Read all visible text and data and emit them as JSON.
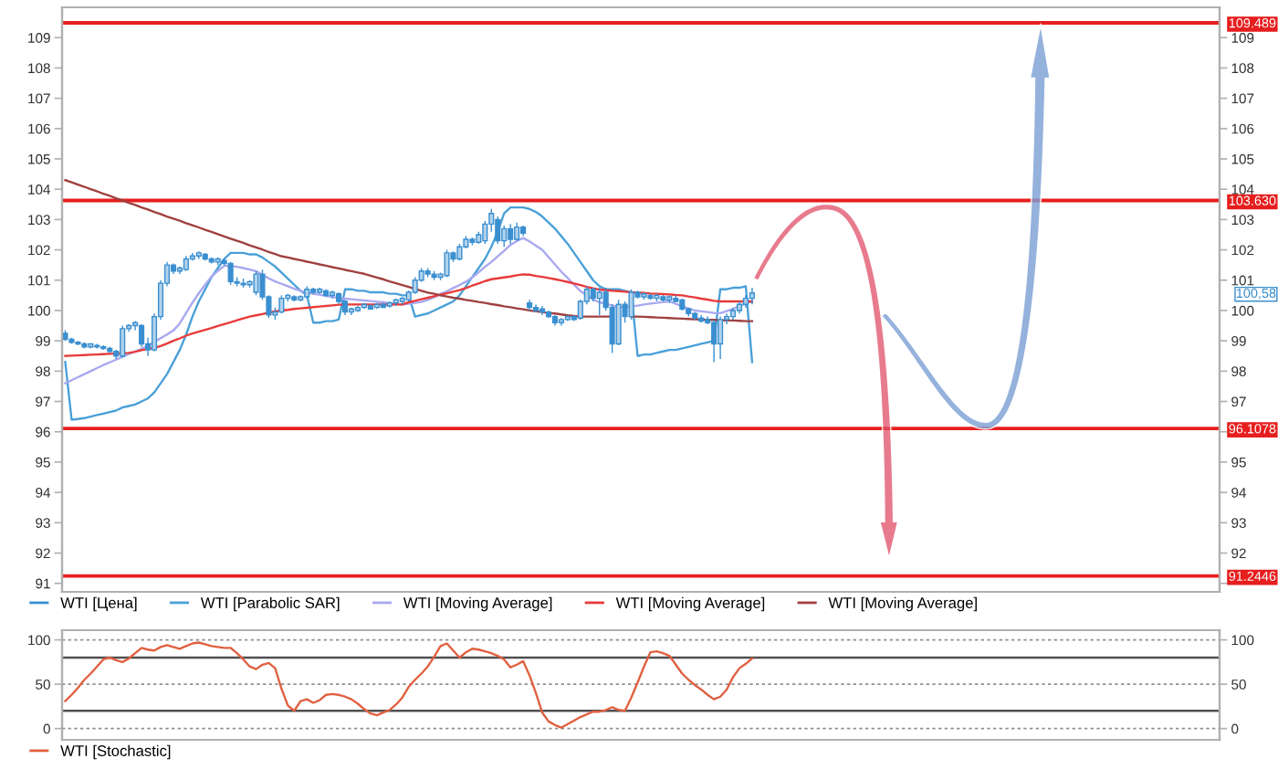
{
  "chart_data": [
    {
      "type": "candlestick",
      "categories": [
        null,
        null,
        null,
        null,
        null,
        null,
        null,
        null,
        null,
        null,
        null,
        null,
        null,
        null,
        null,
        null,
        null,
        null,
        null,
        null,
        null,
        null,
        null,
        null,
        null,
        null,
        null,
        null,
        null,
        null,
        null,
        null,
        null,
        null,
        null,
        null,
        null,
        null,
        null,
        null,
        null,
        null,
        null,
        null,
        null,
        null,
        null,
        null,
        null,
        null,
        null,
        null,
        null,
        null,
        null,
        null,
        null,
        null,
        null,
        null,
        null,
        null,
        null,
        null,
        null,
        null,
        null,
        null,
        null,
        null,
        null,
        null,
        null,
        null,
        null,
        null,
        null,
        null,
        null,
        null,
        null,
        null,
        null,
        null,
        null,
        null,
        null,
        null,
        null,
        null,
        null,
        null,
        null,
        null,
        null,
        null,
        null,
        null,
        null,
        null,
        null,
        null,
        null,
        null,
        null,
        null,
        null,
        null,
        null,
        null,
        null,
        null,
        null,
        null,
        null,
        null,
        null,
        null,
        null,
        null,
        null,
        null,
        null,
        null,
        null,
        null,
        null,
        null,
        null,
        null,
        null,
        null,
        null,
        null,
        null,
        null,
        null,
        null,
        null,
        null,
        null,
        null,
        null,
        null,
        null,
        null,
        null,
        null,
        null,
        null,
        null,
        null,
        null,
        null,
        null,
        null,
        null,
        null,
        null,
        null,
        null,
        null,
        null,
        null,
        null,
        null,
        null,
        null,
        null,
        null,
        null,
        null,
        null,
        null,
        null,
        null,
        null,
        null,
        null,
        null,
        null,
        null
      ],
      "series": [
        {
          "name": "WTI [Цена]",
          "type": "candlestick",
          "color": "#3a8fd0",
          "ohlc": [
            [
              99.25,
              99.35,
              99.0,
              99.05
            ],
            [
              99.05,
              99.1,
              98.9,
              98.95
            ],
            [
              98.95,
              99.0,
              98.85,
              98.9
            ],
            [
              98.9,
              98.95,
              98.75,
              98.8
            ],
            [
              98.8,
              98.9,
              98.75,
              98.9
            ],
            [
              98.85,
              98.9,
              98.75,
              98.8
            ],
            [
              98.8,
              98.85,
              98.7,
              98.75
            ],
            [
              98.75,
              98.8,
              98.6,
              98.65
            ],
            [
              98.65,
              98.7,
              98.4,
              98.5
            ],
            [
              98.5,
              99.5,
              98.45,
              99.4
            ],
            [
              99.4,
              99.55,
              99.3,
              99.5
            ],
            [
              99.5,
              99.65,
              99.35,
              99.6
            ],
            [
              99.5,
              99.55,
              98.8,
              98.9
            ],
            [
              98.9,
              99.1,
              98.5,
              98.7
            ],
            [
              98.7,
              99.9,
              98.65,
              99.8
            ],
            [
              99.8,
              101.0,
              99.7,
              100.9
            ],
            [
              100.9,
              101.6,
              100.8,
              101.5
            ],
            [
              101.5,
              101.55,
              101.2,
              101.3
            ],
            [
              101.3,
              101.45,
              101.2,
              101.4
            ],
            [
              101.35,
              101.8,
              101.3,
              101.7
            ],
            [
              101.7,
              101.9,
              101.65,
              101.8
            ],
            [
              101.8,
              101.95,
              101.7,
              101.9
            ],
            [
              101.85,
              101.9,
              101.65,
              101.7
            ],
            [
              101.7,
              101.75,
              101.55,
              101.6
            ],
            [
              101.6,
              101.75,
              101.5,
              101.7
            ],
            [
              101.65,
              101.7,
              101.5,
              101.55
            ],
            [
              101.55,
              101.6,
              100.85,
              100.95
            ],
            [
              100.95,
              101.1,
              100.8,
              100.9
            ],
            [
              100.9,
              101.05,
              100.75,
              100.85
            ],
            [
              100.85,
              101.0,
              100.75,
              100.95
            ],
            [
              100.6,
              101.3,
              100.5,
              101.2
            ],
            [
              101.2,
              101.35,
              100.35,
              100.45
            ],
            [
              100.45,
              100.5,
              99.75,
              99.85
            ],
            [
              99.85,
              100.1,
              99.7,
              99.95
            ],
            [
              99.95,
              100.5,
              99.9,
              100.4
            ],
            [
              100.4,
              100.55,
              100.3,
              100.5
            ],
            [
              100.45,
              100.5,
              100.3,
              100.35
            ],
            [
              100.35,
              100.5,
              100.3,
              100.45
            ],
            [
              100.45,
              100.8,
              100.4,
              100.7
            ],
            [
              100.7,
              100.75,
              100.55,
              100.6
            ],
            [
              100.6,
              100.75,
              100.55,
              100.7
            ],
            [
              100.65,
              100.7,
              100.45,
              100.5
            ],
            [
              100.5,
              100.65,
              100.4,
              100.6
            ],
            [
              100.55,
              100.6,
              100.2,
              100.3
            ],
            [
              100.3,
              100.35,
              99.85,
              99.95
            ],
            [
              99.95,
              100.1,
              99.85,
              100.05
            ],
            [
              100.0,
              100.15,
              99.95,
              100.1
            ],
            [
              100.1,
              100.25,
              100.05,
              100.2
            ],
            [
              100.15,
              100.2,
              100.05,
              100.05
            ],
            [
              100.1,
              100.25,
              100.05,
              100.2
            ],
            [
              100.2,
              100.25,
              100.1,
              100.1
            ],
            [
              100.15,
              100.3,
              100.1,
              100.25
            ],
            [
              100.25,
              100.4,
              100.15,
              100.35
            ],
            [
              100.3,
              100.45,
              100.2,
              100.4
            ],
            [
              100.35,
              100.65,
              100.3,
              100.6
            ],
            [
              100.6,
              101.1,
              100.55,
              101.0
            ],
            [
              101.0,
              101.4,
              100.95,
              101.3
            ],
            [
              101.3,
              101.4,
              101.1,
              101.2
            ],
            [
              101.2,
              101.3,
              101.0,
              101.1
            ],
            [
              101.1,
              101.25,
              101.0,
              101.2
            ],
            [
              101.15,
              102.0,
              101.1,
              101.9
            ],
            [
              101.9,
              101.95,
              101.6,
              101.7
            ],
            [
              101.7,
              102.2,
              101.65,
              102.1
            ],
            [
              102.1,
              102.45,
              102.05,
              102.35
            ],
            [
              102.35,
              102.4,
              102.15,
              102.25
            ],
            [
              102.25,
              102.6,
              102.2,
              102.5
            ],
            [
              102.3,
              102.95,
              102.2,
              102.85
            ],
            [
              102.85,
              103.35,
              102.6,
              103.2
            ],
            [
              103.0,
              103.1,
              102.2,
              102.3
            ],
            [
              102.3,
              102.8,
              102.1,
              102.7
            ],
            [
              102.7,
              102.85,
              102.2,
              102.35
            ],
            [
              102.35,
              102.9,
              102.3,
              102.75
            ],
            [
              102.75,
              102.8,
              102.45,
              102.55
            ],
            [
              100.25,
              100.35,
              100.0,
              100.1
            ],
            [
              100.1,
              100.2,
              99.95,
              100.0
            ],
            [
              100.05,
              100.15,
              99.85,
              99.95
            ],
            [
              99.95,
              100.0,
              99.75,
              99.8
            ],
            [
              99.8,
              99.85,
              99.5,
              99.6
            ],
            [
              99.6,
              99.75,
              99.5,
              99.7
            ],
            [
              99.7,
              99.85,
              99.65,
              99.8
            ],
            [
              99.8,
              99.85,
              99.65,
              99.7
            ],
            [
              99.75,
              100.35,
              99.7,
              100.3
            ],
            [
              100.3,
              100.8,
              100.2,
              100.7
            ],
            [
              100.7,
              100.75,
              100.3,
              100.4
            ],
            [
              100.4,
              100.75,
              99.85,
              100.6
            ],
            [
              100.6,
              100.75,
              100.0,
              100.1
            ],
            [
              100.1,
              100.2,
              98.6,
              98.9
            ],
            [
              98.9,
              100.35,
              98.85,
              100.2
            ],
            [
              100.2,
              100.3,
              99.6,
              99.8
            ],
            [
              99.8,
              100.7,
              99.7,
              100.6
            ],
            [
              100.6,
              100.65,
              100.4,
              100.45
            ],
            [
              100.45,
              100.6,
              100.35,
              100.55
            ],
            [
              100.5,
              100.55,
              100.35,
              100.4
            ],
            [
              100.4,
              100.55,
              100.3,
              100.5
            ],
            [
              100.45,
              100.5,
              100.3,
              100.35
            ],
            [
              100.35,
              100.5,
              100.25,
              100.45
            ],
            [
              100.4,
              100.5,
              100.3,
              100.3
            ],
            [
              100.35,
              100.4,
              100.0,
              100.05
            ],
            [
              100.05,
              100.1,
              99.8,
              99.9
            ],
            [
              99.9,
              99.95,
              99.7,
              99.75
            ],
            [
              99.75,
              99.85,
              99.6,
              99.65
            ],
            [
              99.7,
              99.8,
              99.55,
              99.6
            ],
            [
              99.6,
              99.7,
              98.3,
              98.9
            ],
            [
              98.9,
              99.8,
              98.4,
              99.7
            ],
            [
              99.7,
              99.9,
              99.55,
              99.8
            ],
            [
              99.8,
              100.1,
              99.7,
              100.0
            ],
            [
              100.0,
              100.3,
              99.9,
              100.2
            ],
            [
              100.2,
              100.5,
              100.1,
              100.4
            ],
            [
              100.4,
              100.75,
              100.2,
              100.58
            ],
            null,
            null,
            null,
            null,
            null,
            null,
            null,
            null,
            null,
            null,
            null,
            null,
            null,
            null,
            null,
            null,
            null,
            null,
            null,
            null,
            null,
            null,
            null,
            null,
            null,
            null,
            null,
            null,
            null,
            null,
            null,
            null,
            null,
            null,
            null,
            null,
            null,
            null,
            null,
            null,
            null,
            null,
            null,
            null,
            null,
            null,
            null,
            null,
            null,
            null,
            null,
            null,
            null,
            null,
            null,
            null,
            null,
            null,
            null,
            null,
            null,
            null,
            null,
            null,
            null,
            null,
            null,
            null,
            null,
            null,
            null,
            null,
            null
          ]
        },
        {
          "name": "WTI [Parabolic SAR]",
          "type": "line",
          "color": "#4aa0d8",
          "values": [
            98.3,
            96.4,
            96.42,
            96.45,
            96.5,
            96.55,
            96.6,
            96.65,
            96.7,
            96.8,
            96.85,
            96.9,
            97.0,
            97.1,
            97.3,
            97.6,
            97.9,
            98.3,
            98.7,
            99.2,
            99.8,
            100.3,
            100.7,
            101.1,
            101.4,
            101.7,
            101.9,
            101.9,
            101.9,
            101.85,
            101.85,
            101.75,
            101.6,
            101.45,
            101.25,
            101.05,
            100.85,
            100.65,
            100.5,
            99.6,
            99.6,
            99.65,
            99.65,
            99.7,
            100.7,
            100.7,
            100.65,
            100.65,
            100.6,
            100.6,
            100.6,
            100.55,
            100.55,
            100.5,
            100.5,
            99.8,
            99.85,
            99.9,
            100.0,
            100.1,
            100.2,
            100.3,
            100.5,
            100.8,
            101.1,
            101.4,
            101.7,
            102.1,
            102.6,
            103.2,
            103.4,
            103.4,
            103.4,
            103.35,
            103.25,
            103.1,
            102.9,
            102.7,
            102.45,
            102.2,
            101.9,
            101.6,
            101.3,
            101.0,
            100.8,
            100.7,
            100.7,
            100.7,
            100.65,
            100.6,
            98.5,
            98.55,
            98.55,
            98.6,
            98.65,
            98.7,
            98.7,
            98.75,
            98.8,
            98.85,
            98.9,
            98.95,
            99.0,
            100.7,
            100.7,
            100.75,
            100.75,
            100.8,
            98.3,
            null,
            null,
            null,
            null,
            null,
            null,
            null,
            null,
            null,
            null,
            null,
            null,
            null,
            null,
            null,
            null,
            null,
            null,
            null,
            null,
            null,
            null,
            null,
            null,
            null,
            null,
            null,
            null,
            null,
            null,
            null,
            null,
            null,
            null,
            null,
            null,
            null,
            null,
            null,
            null,
            null,
            null,
            null,
            null,
            null,
            null,
            null,
            null,
            null,
            null,
            null,
            null,
            null,
            null,
            null,
            null,
            null,
            null,
            null,
            null,
            null,
            null,
            null,
            null,
            null,
            null,
            null,
            null,
            null,
            null,
            null,
            null,
            null
          ]
        },
        {
          "name": "WTI [Moving Average]",
          "type": "line",
          "color": "#a8a8f0",
          "values": [
            97.6,
            97.7,
            97.8,
            97.9,
            98.0,
            98.1,
            98.2,
            98.29,
            98.38,
            98.47,
            98.56,
            98.65,
            98.74,
            98.84,
            98.96,
            99.09,
            99.21,
            99.34,
            99.57,
            99.92,
            100.26,
            100.57,
            100.85,
            101.12,
            101.31,
            101.47,
            101.47,
            101.44,
            101.4,
            101.35,
            101.3,
            101.17,
            101.06,
            100.96,
            100.88,
            100.8,
            100.72,
            100.65,
            100.59,
            100.55,
            100.52,
            100.48,
            100.45,
            100.41,
            100.39,
            100.37,
            100.35,
            100.33,
            100.31,
            100.29,
            100.27,
            100.24,
            100.22,
            100.2,
            100.22,
            100.25,
            100.28,
            100.35,
            100.44,
            100.55,
            100.63,
            100.74,
            100.84,
            100.95,
            101.09,
            101.26,
            101.44,
            101.6,
            101.79,
            101.97,
            102.16,
            102.29,
            102.39,
            102.28,
            102.14,
            102.0,
            101.76,
            101.52,
            101.28,
            101.07,
            100.85,
            100.64,
            100.5,
            100.36,
            100.27,
            100.22,
            100.17,
            100.11,
            100.11,
            100.14,
            100.16,
            100.2,
            100.23,
            100.25,
            100.28,
            100.3,
            100.22,
            100.14,
            100.06,
            100.0,
            99.97,
            99.95,
            99.92,
            99.91,
            99.98,
            100.05,
            100.15,
            100.23,
            100.3,
            null,
            null,
            null,
            null,
            null,
            null,
            null,
            null,
            null,
            null,
            null,
            null,
            null,
            null,
            null,
            null,
            null,
            null,
            null,
            null,
            null,
            null,
            null,
            null,
            null,
            null,
            null,
            null,
            null,
            null,
            null,
            null,
            null,
            null,
            null,
            null,
            null,
            null,
            null,
            null,
            null,
            null,
            null,
            null,
            null,
            null,
            null,
            null,
            null,
            null,
            null,
            null,
            null,
            null,
            null,
            null,
            null,
            null,
            null,
            null,
            null,
            null,
            null,
            null,
            null,
            null,
            null,
            null,
            null,
            null,
            null,
            null,
            null
          ]
        },
        {
          "name": "WTI [Moving Average]",
          "type": "line",
          "color": "#e83a3a",
          "values": [
            98.5,
            98.51,
            98.52,
            98.53,
            98.54,
            98.55,
            98.56,
            98.57,
            98.58,
            98.59,
            98.6,
            98.64,
            98.69,
            98.73,
            98.77,
            98.83,
            98.91,
            99.0,
            99.08,
            99.17,
            99.24,
            99.3,
            99.36,
            99.42,
            99.49,
            99.55,
            99.61,
            99.68,
            99.74,
            99.8,
            99.84,
            99.88,
            99.93,
            99.97,
            100.0,
            100.02,
            100.05,
            100.07,
            100.09,
            100.11,
            100.13,
            100.15,
            100.17,
            100.19,
            100.2,
            100.2,
            100.2,
            100.2,
            100.2,
            100.2,
            100.2,
            100.2,
            100.2,
            100.2,
            100.27,
            100.32,
            100.37,
            100.42,
            100.47,
            100.52,
            100.57,
            100.62,
            100.67,
            100.74,
            100.82,
            100.89,
            100.97,
            101.03,
            101.06,
            101.09,
            101.12,
            101.16,
            101.19,
            101.18,
            101.14,
            101.11,
            101.07,
            101.03,
            100.99,
            100.94,
            100.89,
            100.84,
            100.78,
            100.73,
            100.69,
            100.67,
            100.65,
            100.64,
            100.62,
            100.6,
            100.59,
            100.58,
            100.56,
            100.55,
            100.54,
            100.53,
            100.51,
            100.5,
            100.46,
            100.43,
            100.39,
            100.36,
            100.32,
            100.3,
            100.3,
            100.3,
            100.3,
            100.3,
            100.3,
            null,
            null,
            null,
            null,
            null,
            null,
            null,
            null,
            null,
            null,
            null,
            null,
            null,
            null,
            null,
            null,
            null,
            null,
            null,
            null,
            null,
            null,
            null,
            null,
            null,
            null,
            null,
            null,
            null,
            null,
            null,
            null,
            null,
            null,
            null,
            null,
            null,
            null,
            null,
            null,
            null,
            null,
            null,
            null,
            null,
            null,
            null,
            null,
            null,
            null,
            null,
            null,
            null,
            null,
            null,
            null,
            null,
            null,
            null,
            null,
            null,
            null,
            null,
            null,
            null,
            null,
            null,
            null,
            null,
            null,
            null,
            null,
            null
          ]
        },
        {
          "name": "WTI [Moving Average]",
          "type": "line",
          "color": "#a04040",
          "values": [
            104.3,
            104.23,
            104.15,
            104.08,
            104.0,
            103.93,
            103.85,
            103.78,
            103.7,
            103.63,
            103.55,
            103.48,
            103.4,
            103.33,
            103.25,
            103.18,
            103.1,
            103.03,
            102.96,
            102.88,
            102.81,
            102.74,
            102.66,
            102.59,
            102.52,
            102.44,
            102.37,
            102.3,
            102.23,
            102.15,
            102.08,
            102.01,
            101.93,
            101.86,
            101.79,
            101.75,
            101.7,
            101.66,
            101.61,
            101.57,
            101.52,
            101.48,
            101.43,
            101.39,
            101.34,
            101.3,
            101.25,
            101.21,
            101.15,
            101.09,
            101.03,
            100.96,
            100.9,
            100.84,
            100.78,
            100.71,
            100.65,
            100.59,
            100.55,
            100.5,
            100.46,
            100.42,
            100.39,
            100.35,
            100.32,
            100.28,
            100.25,
            100.21,
            100.18,
            100.14,
            100.11,
            100.07,
            100.04,
            100.0,
            99.97,
            99.95,
            99.92,
            99.9,
            99.87,
            99.84,
            99.82,
            99.8,
            99.8,
            99.8,
            99.8,
            99.8,
            99.8,
            null,
            null,
            99.8,
            99.8,
            99.79,
            99.78,
            99.77,
            99.76,
            99.75,
            99.74,
            99.73,
            99.72,
            99.71,
            99.7,
            99.69,
            99.69,
            99.68,
            99.67,
            99.67,
            99.66,
            99.65,
            99.65,
            null,
            null,
            null,
            null,
            null,
            null,
            null,
            null,
            null,
            null,
            null,
            null,
            null,
            null,
            null,
            null,
            null,
            null,
            null,
            null,
            null,
            null,
            null,
            null,
            null,
            null,
            null,
            null,
            null,
            null,
            null,
            null,
            null,
            null,
            null,
            null,
            null,
            null,
            null,
            null,
            null,
            null,
            null,
            null,
            null,
            null,
            null,
            null,
            null,
            null,
            null,
            null,
            null,
            null,
            null,
            null,
            null,
            null,
            null,
            null,
            null,
            null,
            null,
            null,
            null,
            null,
            null,
            null,
            null,
            null,
            null,
            null,
            null
          ]
        }
      ],
      "ylim": [
        90.72,
        110.0
      ],
      "yticks": [
        91,
        92,
        93,
        94,
        95,
        96,
        97,
        98,
        99,
        100,
        101,
        102,
        103,
        104,
        105,
        106,
        107,
        108,
        109
      ],
      "y2lim": [
        90.72,
        110.0
      ],
      "y2ticks": [
        {
          "value": 91,
          "label": null
        },
        92,
        93,
        94,
        95,
        {
          "value": 96,
          "label": null
        },
        97,
        98,
        99,
        100,
        101,
        102,
        103,
        104,
        105,
        106,
        107,
        108,
        109
      ],
      "ref_lines": [
        {
          "axis": "y",
          "value": 109.489,
          "label": "109.489",
          "color": "#e61e1e"
        },
        {
          "axis": "y",
          "value": 103.63,
          "label": "103.630",
          "color": "#e61e1e"
        },
        {
          "axis": "y",
          "value": 96.1078,
          "label": "96.1078",
          "color": "#e61e1e"
        },
        {
          "axis": "y",
          "value": 91.2446,
          "label": "91.2446",
          "color": "#e61e1e"
        }
      ],
      "annotations": [
        "100,58"
      ],
      "legend": "bottom left",
      "tick_labels": "y"
    },
    {
      "type": "line",
      "categories": [
        null,
        null,
        null,
        null,
        null,
        null,
        null,
        null,
        null,
        null,
        null,
        null,
        null,
        null,
        null,
        null,
        null,
        null,
        null,
        null,
        null,
        null,
        null,
        null,
        null,
        null,
        null,
        null,
        null,
        null,
        null,
        null,
        null,
        null,
        null,
        null,
        null,
        null,
        null,
        null,
        null,
        null,
        null,
        null,
        null,
        null,
        null,
        null,
        null,
        null,
        null,
        null,
        null,
        null,
        null,
        null,
        null,
        null,
        null,
        null,
        null,
        null,
        null,
        null,
        null,
        null,
        null,
        null,
        null,
        null,
        null,
        null,
        null,
        null,
        null,
        null,
        null,
        null,
        null,
        null,
        null,
        null,
        null,
        null,
        null,
        null,
        null,
        null,
        null,
        null,
        null,
        null,
        null,
        null,
        null,
        null,
        null,
        null,
        null,
        null,
        null,
        null,
        null,
        null,
        null,
        null,
        null,
        null,
        null,
        null,
        null,
        null,
        null,
        null,
        null,
        null,
        null,
        null,
        null,
        null,
        null,
        null,
        null,
        null,
        null,
        null,
        null,
        null,
        null,
        null,
        null,
        null,
        null,
        null,
        null,
        null,
        null,
        null,
        null,
        null,
        null,
        null,
        null,
        null,
        null,
        null,
        null,
        null,
        null,
        null,
        null,
        null,
        null,
        null,
        null,
        null,
        null,
        null,
        null,
        null,
        null,
        null,
        null,
        null,
        null,
        null,
        null,
        null,
        null,
        null,
        null,
        null,
        null,
        null,
        null,
        null,
        null,
        null,
        null,
        null,
        null,
        null
      ],
      "series": [
        {
          "name": "WTI [Stochastic]",
          "color": "#e06040",
          "values": [
            31,
            38,
            46,
            55,
            62,
            70,
            78,
            80,
            77,
            75,
            79,
            85,
            91,
            89,
            88,
            92,
            94,
            92,
            90,
            93,
            96,
            97,
            95,
            93,
            92,
            91,
            91,
            85,
            78,
            70,
            67,
            72,
            74,
            68,
            45,
            26,
            20,
            31,
            33,
            29,
            32,
            38,
            39,
            38,
            36,
            33,
            28,
            22,
            17,
            15,
            18,
            21,
            27,
            35,
            47,
            55,
            62,
            70,
            81,
            93,
            96,
            88,
            80,
            86,
            90,
            89,
            87,
            85,
            82,
            78,
            69,
            72,
            76,
            60,
            40,
            18,
            8,
            4,
            1,
            5,
            9,
            13,
            16,
            19,
            19,
            21,
            24,
            21,
            20,
            35,
            52,
            70,
            86,
            87,
            85,
            82,
            72,
            62,
            55,
            49,
            44,
            38,
            33,
            36,
            44,
            58,
            68,
            73,
            79,
            null,
            null,
            null,
            null,
            null,
            null,
            null,
            null,
            null,
            null,
            null,
            null,
            null,
            null,
            null,
            null,
            null,
            null,
            null,
            null,
            null,
            null,
            null,
            null,
            null,
            null,
            null,
            null,
            null,
            null,
            null,
            null,
            null,
            null,
            null,
            null,
            null,
            null,
            null,
            null,
            null,
            null,
            null,
            null,
            null,
            null,
            null,
            null,
            null,
            null,
            null,
            null,
            null,
            null,
            null,
            null,
            null,
            null,
            null,
            null,
            null,
            null,
            null,
            null,
            null,
            null,
            null,
            null,
            null,
            null,
            null,
            null,
            null
          ]
        }
      ],
      "ylim": [
        -12.7,
        110.9
      ],
      "yticks": [
        0,
        50,
        100
      ],
      "y2lim": [
        -12.7,
        110.9
      ],
      "y2ticks": [
        0,
        50,
        100
      ],
      "ref_lines": [
        {
          "axis": "y",
          "value": 80,
          "color": "#505050"
        },
        {
          "axis": "y",
          "value": 20,
          "color": "#505050"
        }
      ],
      "grid": "y",
      "legend": "bottom left",
      "tick_labels": "y"
    }
  ]
}
